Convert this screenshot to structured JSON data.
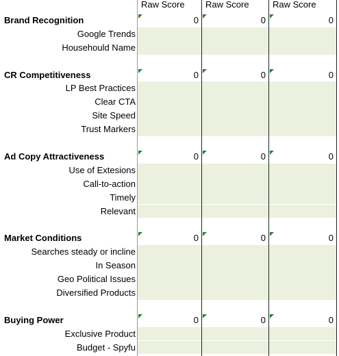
{
  "columns": [
    "Raw Score",
    "Raw Score",
    "Raw Score"
  ],
  "sections": [
    {
      "title": "Brand Recognition",
      "scores": [
        0,
        0,
        0
      ],
      "items": [
        "Google Trends",
        "Househould Name"
      ]
    },
    {
      "title": "CR Competitiveness",
      "scores": [
        0,
        0,
        0
      ],
      "items": [
        "LP Best Practices",
        "Clear CTA",
        "Site Speed",
        "Trust Markers"
      ]
    },
    {
      "title": "Ad Copy Attractiveness",
      "scores": [
        0,
        0,
        0
      ],
      "items": [
        "Use of Extesions",
        "Call-to-action",
        "Timely",
        "Relevant"
      ]
    },
    {
      "title": "Market Conditions",
      "scores": [
        0,
        0,
        0
      ],
      "items": [
        "Searches steady or incline",
        "In Season",
        "Geo Political Issues",
        "Diversified Products"
      ]
    },
    {
      "title": "Buying Power",
      "scores": [
        0,
        0,
        0
      ],
      "items": [
        "Exclusive Product",
        "Budget - Spyfu"
      ]
    }
  ]
}
